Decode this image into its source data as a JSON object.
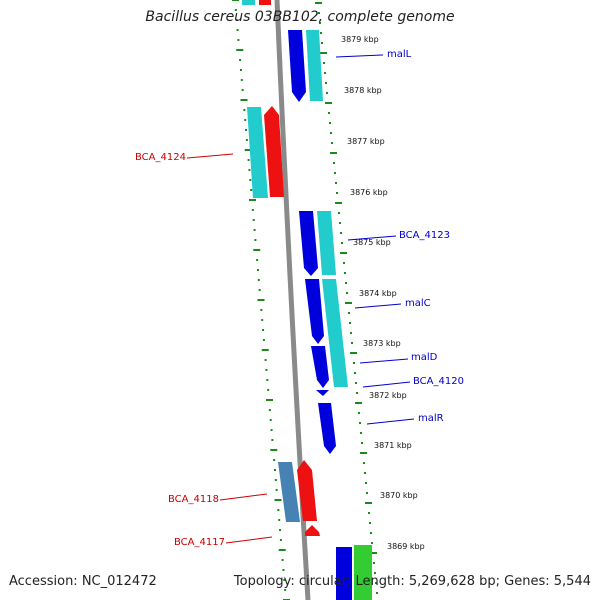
{
  "title": "Bacillus cereus 03BB102, complete genome",
  "footer": {
    "accession": "Accession: NC_012472",
    "stats": "Topology: circular; Length: 5,269,628 bp; Genes: 5,544"
  },
  "colors": {
    "backbone": "#8a8a8a",
    "tick": "#1a8a1a",
    "forward_label": "#cc0000",
    "reverse_label": "#0000cc",
    "gene_blue": "#0000dd",
    "gene_cyan": "#22cccc",
    "gene_red": "#ee1111",
    "gene_steel": "#4682b4",
    "gene_green": "#33cc33"
  },
  "kbp_labels": [
    "3879 kbp",
    "3878 kbp",
    "3877 kbp",
    "3876 kbp",
    "3875 kbp",
    "3874 kbp",
    "3873 kbp",
    "3872 kbp",
    "3871 kbp",
    "3870 kbp",
    "3869 kbp"
  ],
  "gene_labels": {
    "malL": "malL",
    "bca4124": "BCA_4124",
    "bca4123": "BCA_4123",
    "malC": "malC",
    "malD": "malD",
    "bca4120": "BCA_4120",
    "malR": "malR",
    "bca4118": "BCA_4118",
    "bca4117": "BCA_4117"
  }
}
